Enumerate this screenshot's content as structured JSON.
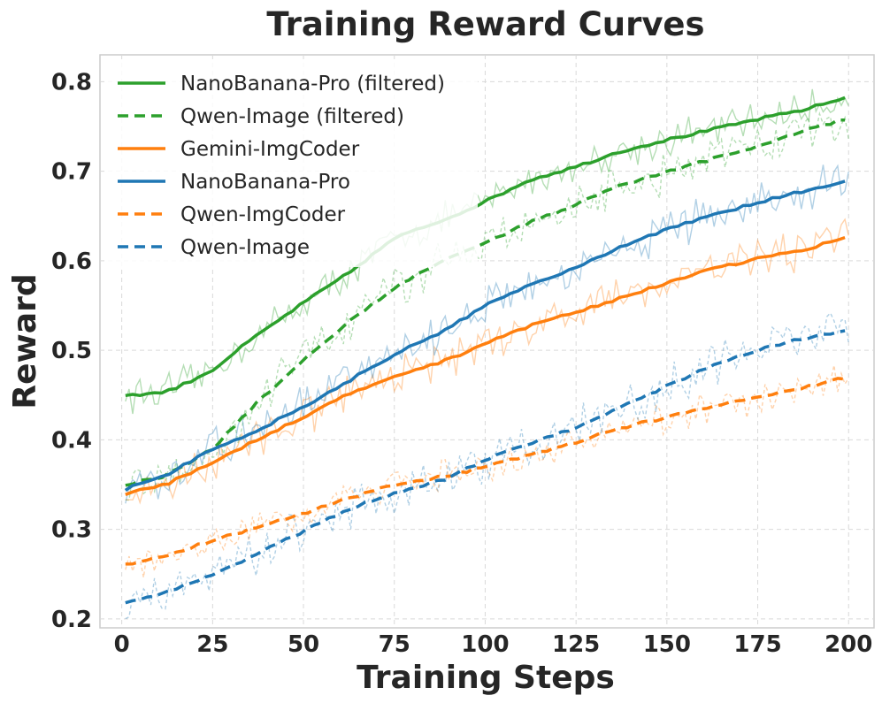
{
  "chart_data": {
    "type": "line",
    "title": "Training Reward Curves",
    "xlabel": "Training Steps",
    "ylabel": "Reward",
    "xlim": [
      -6,
      207
    ],
    "ylim": [
      0.19,
      0.83
    ],
    "xticks": [
      0,
      25,
      50,
      75,
      100,
      125,
      150,
      175,
      200
    ],
    "xtick_labels": [
      "0",
      "25",
      "50",
      "75",
      "100",
      "125",
      "150",
      "175",
      "200"
    ],
    "yticks": [
      0.2,
      0.3,
      0.4,
      0.5,
      0.6,
      0.7,
      0.8
    ],
    "ytick_labels": [
      "0.2",
      "0.3",
      "0.4",
      "0.5",
      "0.6",
      "0.7",
      "0.8"
    ],
    "grid": true,
    "legend_position": "top-left",
    "series": [
      {
        "name": "NanoBanana-Pro (filtered)",
        "color": "#2ca02c",
        "style": "solid",
        "x": [
          1,
          10,
          15,
          25,
          35,
          50,
          62,
          75,
          90,
          100,
          112,
          125,
          137,
          150,
          162,
          175,
          187,
          200
        ],
        "values": [
          0.45,
          0.452,
          0.458,
          0.478,
          0.51,
          0.553,
          0.585,
          0.625,
          0.648,
          0.666,
          0.69,
          0.705,
          0.722,
          0.735,
          0.746,
          0.758,
          0.768,
          0.783
        ],
        "raw_noise": 0.015
      },
      {
        "name": "Qwen-Image (filtered)",
        "color": "#2ca02c",
        "style": "dashed",
        "x": [
          1,
          12,
          25,
          37,
          50,
          62,
          75,
          90,
          100,
          112,
          125,
          137,
          150,
          162,
          175,
          187,
          200
        ],
        "values": [
          0.35,
          0.36,
          0.39,
          0.44,
          0.49,
          0.53,
          0.57,
          0.605,
          0.62,
          0.642,
          0.663,
          0.683,
          0.699,
          0.713,
          0.728,
          0.745,
          0.759
        ],
        "raw_noise": 0.018
      },
      {
        "name": "Gemini-ImgCoder",
        "color": "#ff7f0e",
        "style": "solid",
        "x": [
          1,
          12,
          25,
          37,
          50,
          62,
          75,
          90,
          100,
          112,
          125,
          137,
          150,
          162,
          175,
          187,
          200
        ],
        "values": [
          0.34,
          0.35,
          0.375,
          0.4,
          0.425,
          0.45,
          0.47,
          0.49,
          0.508,
          0.527,
          0.543,
          0.558,
          0.575,
          0.59,
          0.602,
          0.612,
          0.626
        ],
        "raw_noise": 0.017
      },
      {
        "name": "NanoBanana-Pro",
        "color": "#1f77b4",
        "style": "solid",
        "x": [
          1,
          12,
          25,
          37,
          50,
          62,
          75,
          90,
          100,
          112,
          125,
          137,
          150,
          162,
          175,
          187,
          200
        ],
        "values": [
          0.345,
          0.36,
          0.39,
          0.41,
          0.437,
          0.465,
          0.495,
          0.525,
          0.55,
          0.572,
          0.593,
          0.615,
          0.635,
          0.65,
          0.665,
          0.677,
          0.69
        ],
        "raw_noise": 0.018
      },
      {
        "name": "Qwen-ImgCoder",
        "color": "#ff7f0e",
        "style": "dashed",
        "x": [
          1,
          12,
          25,
          37,
          50,
          62,
          75,
          90,
          100,
          112,
          125,
          137,
          150,
          162,
          175,
          187,
          200
        ],
        "values": [
          0.26,
          0.27,
          0.288,
          0.302,
          0.318,
          0.334,
          0.35,
          0.36,
          0.37,
          0.383,
          0.397,
          0.413,
          0.425,
          0.436,
          0.447,
          0.458,
          0.47
        ],
        "raw_noise": 0.014
      },
      {
        "name": "Qwen-Image",
        "color": "#1f77b4",
        "style": "dashed",
        "x": [
          1,
          12,
          25,
          37,
          50,
          62,
          75,
          90,
          100,
          112,
          125,
          137,
          150,
          162,
          175,
          187,
          200
        ],
        "values": [
          0.217,
          0.23,
          0.25,
          0.272,
          0.298,
          0.322,
          0.34,
          0.357,
          0.378,
          0.395,
          0.414,
          0.436,
          0.46,
          0.482,
          0.5,
          0.513,
          0.522
        ],
        "raw_noise": 0.02
      }
    ]
  }
}
